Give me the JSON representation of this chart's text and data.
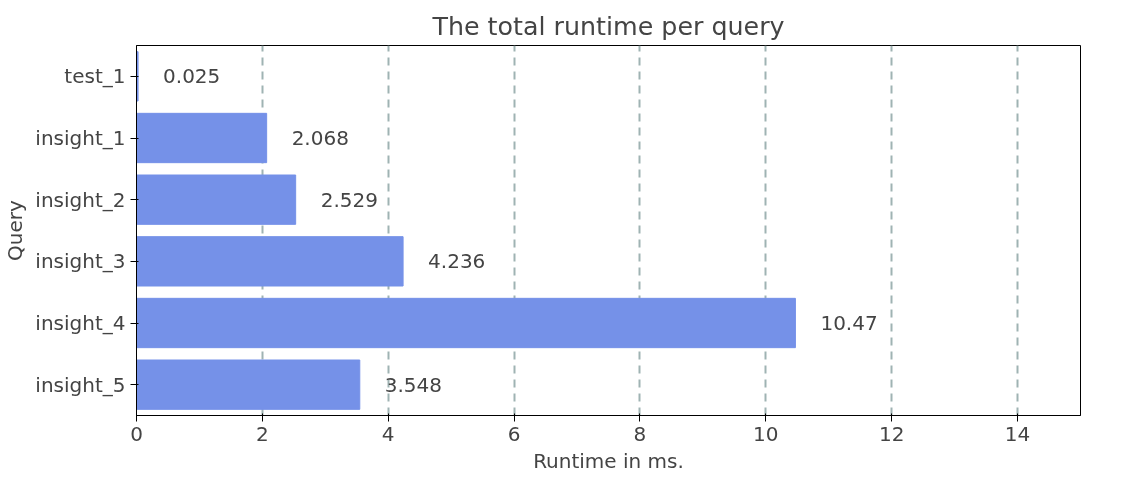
{
  "chart_data": {
    "type": "bar",
    "orientation": "horizontal",
    "title": "The total runtime per query",
    "xlabel": "Runtime in ms.",
    "ylabel": "Query",
    "categories": [
      "test_1",
      "insight_1",
      "insight_2",
      "insight_3",
      "insight_4",
      "insight_5"
    ],
    "values": [
      0.025,
      2.068,
      2.529,
      4.236,
      10.47,
      3.548
    ],
    "color": "#7591e8",
    "xlim": [
      0,
      15
    ],
    "xticks": [
      0,
      2,
      4,
      6,
      8,
      10,
      12,
      14
    ],
    "grid": "x",
    "data_labels": true
  }
}
